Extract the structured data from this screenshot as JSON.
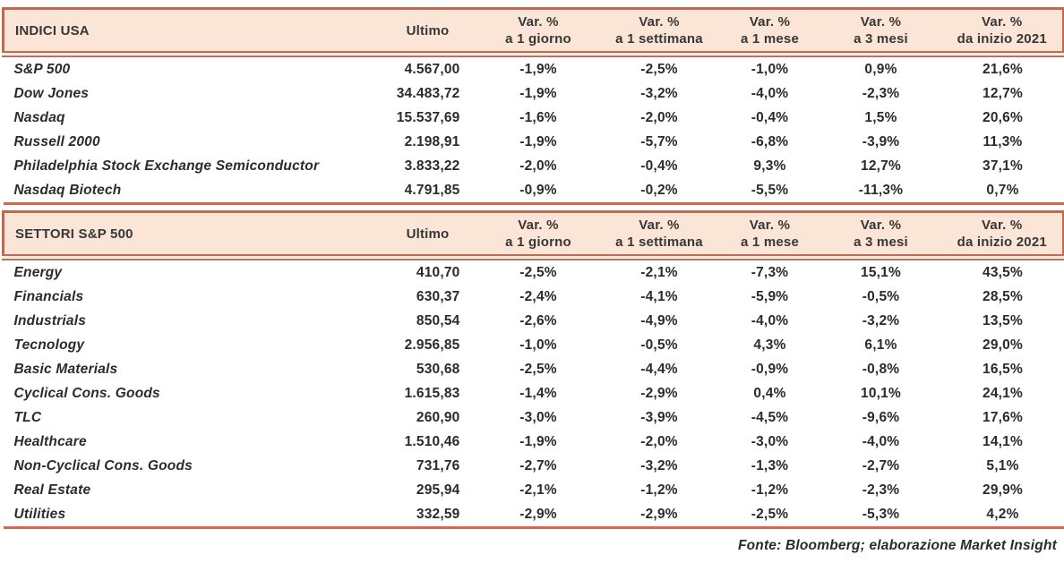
{
  "columns": {
    "ultimo": "Ultimo",
    "var_label": "Var. %",
    "periods": [
      "a 1 giorno",
      "a 1 settimana",
      "a 1 mese",
      "a 3 mesi",
      "da inizio 2021"
    ]
  },
  "layout_col_widths": [
    418,
    112,
    135,
    135,
    112,
    136,
    136
  ],
  "sections": [
    {
      "title": "INDICI USA",
      "rows": [
        {
          "name": "S&P 500",
          "ultimo": "4.567,00",
          "vars": [
            "-1,9%",
            "-2,5%",
            "-1,0%",
            "0,9%",
            "21,6%"
          ]
        },
        {
          "name": "Dow Jones",
          "ultimo": "34.483,72",
          "vars": [
            "-1,9%",
            "-3,2%",
            "-4,0%",
            "-2,3%",
            "12,7%"
          ]
        },
        {
          "name": "Nasdaq",
          "ultimo": "15.537,69",
          "vars": [
            "-1,6%",
            "-2,0%",
            "-0,4%",
            "1,5%",
            "20,6%"
          ]
        },
        {
          "name": "Russell 2000",
          "ultimo": "2.198,91",
          "vars": [
            "-1,9%",
            "-5,7%",
            "-6,8%",
            "-3,9%",
            "11,3%"
          ]
        },
        {
          "name": "Philadelphia Stock Exchange Semiconductor",
          "ultimo": "3.833,22",
          "vars": [
            "-2,0%",
            "-0,4%",
            "9,3%",
            "12,7%",
            "37,1%"
          ]
        },
        {
          "name": "Nasdaq Biotech",
          "ultimo": "4.791,85",
          "vars": [
            "-0,9%",
            "-0,2%",
            "-5,5%",
            "-11,3%",
            "0,7%"
          ]
        }
      ]
    },
    {
      "title": "SETTORI S&P 500",
      "rows": [
        {
          "name": "Energy",
          "ultimo": "410,70",
          "vars": [
            "-2,5%",
            "-2,1%",
            "-7,3%",
            "15,1%",
            "43,5%"
          ]
        },
        {
          "name": "Financials",
          "ultimo": "630,37",
          "vars": [
            "-2,4%",
            "-4,1%",
            "-5,9%",
            "-0,5%",
            "28,5%"
          ]
        },
        {
          "name": "Industrials",
          "ultimo": "850,54",
          "vars": [
            "-2,6%",
            "-4,9%",
            "-4,0%",
            "-3,2%",
            "13,5%"
          ]
        },
        {
          "name": "Tecnology",
          "ultimo": "2.956,85",
          "vars": [
            "-1,0%",
            "-0,5%",
            "4,3%",
            "6,1%",
            "29,0%"
          ]
        },
        {
          "name": "Basic Materials",
          "ultimo": "530,68",
          "vars": [
            "-2,5%",
            "-4,4%",
            "-0,9%",
            "-0,8%",
            "16,5%"
          ]
        },
        {
          "name": "Cyclical Cons. Goods",
          "ultimo": "1.615,83",
          "vars": [
            "-1,4%",
            "-2,9%",
            "0,4%",
            "10,1%",
            "24,1%"
          ]
        },
        {
          "name": "TLC",
          "ultimo": "260,90",
          "vars": [
            "-3,0%",
            "-3,9%",
            "-4,5%",
            "-9,6%",
            "17,6%"
          ]
        },
        {
          "name": "Healthcare",
          "ultimo": "1.510,46",
          "vars": [
            "-1,9%",
            "-2,0%",
            "-3,0%",
            "-4,0%",
            "14,1%"
          ]
        },
        {
          "name": "Non-Cyclical Cons. Goods",
          "ultimo": "731,76",
          "vars": [
            "-2,7%",
            "-3,2%",
            "-1,3%",
            "-2,7%",
            "5,1%"
          ]
        },
        {
          "name": "Real Estate",
          "ultimo": "295,94",
          "vars": [
            "-2,1%",
            "-1,2%",
            "-1,2%",
            "-2,3%",
            "29,9%"
          ]
        },
        {
          "name": "Utilities",
          "ultimo": "332,59",
          "vars": [
            "-2,9%",
            "-2,9%",
            "-2,5%",
            "-5,3%",
            "4,2%"
          ]
        }
      ]
    }
  ],
  "footer": "Fonte: Bloomberg; elaborazione Market Insight",
  "colors": {
    "header_fill": "#fbe5d6",
    "border": "#c1694e",
    "section_rule": "#d5674a",
    "text": "#2b2b2b"
  }
}
